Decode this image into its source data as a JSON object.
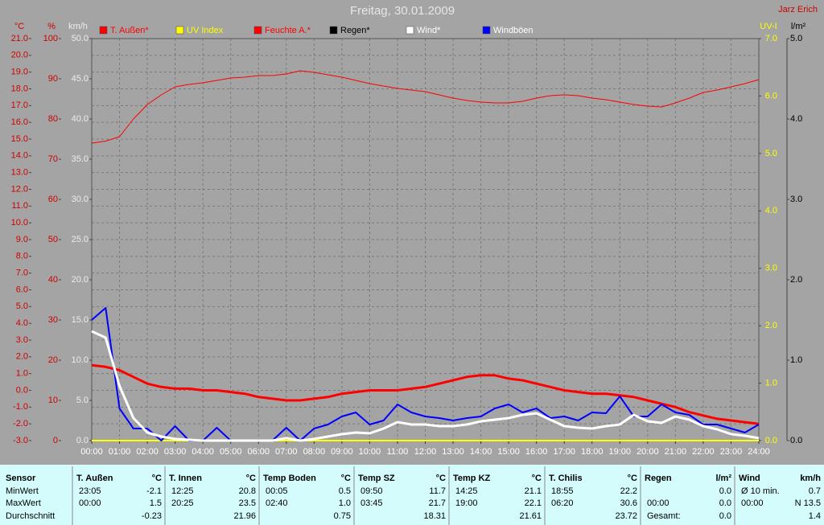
{
  "chart_data": {
    "type": "line",
    "title": "Freitag, 30.01.2009",
    "author": "Jarz Erich",
    "grid": true,
    "background": "#a4a4a4",
    "xlim": [
      0,
      24
    ],
    "xticks": [
      {
        "value": 0,
        "label": "00:00"
      },
      {
        "value": 1,
        "label": "01:00"
      },
      {
        "value": 2,
        "label": "02:00"
      },
      {
        "value": 3,
        "label": "03:00"
      },
      {
        "value": 4,
        "label": "04:00"
      },
      {
        "value": 5,
        "label": "05:00"
      },
      {
        "value": 6,
        "label": "06:00"
      },
      {
        "value": 7,
        "label": "07:00"
      },
      {
        "value": 8,
        "label": "08:00"
      },
      {
        "value": 9,
        "label": "09:00"
      },
      {
        "value": 10,
        "label": "10:00"
      },
      {
        "value": 11,
        "label": "11:00"
      },
      {
        "value": 12,
        "label": "12:00"
      },
      {
        "value": 13,
        "label": "13:00"
      },
      {
        "value": 14,
        "label": "14:00"
      },
      {
        "value": 15,
        "label": "15:00"
      },
      {
        "value": 16,
        "label": "16:00"
      },
      {
        "value": 17,
        "label": "17:00"
      },
      {
        "value": 18,
        "label": "18:00"
      },
      {
        "value": 19,
        "label": "19:00"
      },
      {
        "value": 20,
        "label": "20:00"
      },
      {
        "value": 21,
        "label": "21:00"
      },
      {
        "value": 22,
        "label": "22:00"
      },
      {
        "value": 23,
        "label": "23:00"
      },
      {
        "value": 24,
        "label": "24:00"
      }
    ],
    "axes": {
      "temp": {
        "label": "°C",
        "color": "#d00000",
        "lim": [
          -3,
          21
        ],
        "ticks": [
          {
            "value": -3,
            "label": "-3.0"
          },
          {
            "value": -2,
            "label": "-2.0"
          },
          {
            "value": -1,
            "label": "-1.0"
          },
          {
            "value": 0,
            "label": "0.0"
          },
          {
            "value": 1,
            "label": "1.0"
          },
          {
            "value": 2,
            "label": "2.0"
          },
          {
            "value": 3,
            "label": "3.0"
          },
          {
            "value": 4,
            "label": "4.0"
          },
          {
            "value": 5,
            "label": "5.0"
          },
          {
            "value": 6,
            "label": "6.0"
          },
          {
            "value": 7,
            "label": "7.0"
          },
          {
            "value": 8,
            "label": "8.0"
          },
          {
            "value": 9,
            "label": "9.0"
          },
          {
            "value": 10,
            "label": "10.0"
          },
          {
            "value": 11,
            "label": "11.0"
          },
          {
            "value": 12,
            "label": "12.0"
          },
          {
            "value": 13,
            "label": "13.0"
          },
          {
            "value": 14,
            "label": "14.0"
          },
          {
            "value": 15,
            "label": "15.0"
          },
          {
            "value": 16,
            "label": "16.0"
          },
          {
            "value": 17,
            "label": "17.0"
          },
          {
            "value": 18,
            "label": "18.0"
          },
          {
            "value": 19,
            "label": "19.0"
          },
          {
            "value": 20,
            "label": "20.0"
          },
          {
            "value": 21,
            "label": "21.0"
          }
        ]
      },
      "pct": {
        "label": "%",
        "color": "#d00000",
        "lim": [
          0,
          100
        ],
        "ticks": [
          0,
          10,
          20,
          30,
          40,
          50,
          60,
          70,
          80,
          90,
          100
        ]
      },
      "kmh": {
        "label": "km/h",
        "color": "#ececec",
        "lim": [
          0,
          50
        ],
        "ticks": [
          {
            "value": 0,
            "label": "0.0"
          },
          {
            "value": 5,
            "label": "5.0"
          },
          {
            "value": 10,
            "label": "10.0"
          },
          {
            "value": 15,
            "label": "15.0"
          },
          {
            "value": 20,
            "label": "20.0"
          },
          {
            "value": 25,
            "label": "25.0"
          },
          {
            "value": 30,
            "label": "30.0"
          },
          {
            "value": 35,
            "label": "35.0"
          },
          {
            "value": 40,
            "label": "40.0"
          },
          {
            "value": 45,
            "label": "45.0"
          },
          {
            "value": 50,
            "label": "50.0"
          }
        ]
      },
      "uv": {
        "label": "UV-I",
        "color": "#ffff00",
        "lim": [
          0,
          7
        ],
        "ticks": [
          {
            "value": 0,
            "label": "0.0"
          },
          {
            "value": 1,
            "label": "1.0"
          },
          {
            "value": 2,
            "label": "2.0"
          },
          {
            "value": 3,
            "label": "3.0"
          },
          {
            "value": 4,
            "label": "4.0"
          },
          {
            "value": 5,
            "label": "5.0"
          },
          {
            "value": 6,
            "label": "6.0"
          },
          {
            "value": 7,
            "label": "7.0"
          }
        ]
      },
      "rain": {
        "label": "l/m²",
        "color": "#000000",
        "lim": [
          0,
          5
        ],
        "ticks": [
          {
            "value": 0,
            "label": "0.0"
          },
          {
            "value": 1,
            "label": "1.0"
          },
          {
            "value": 2,
            "label": "2.0"
          },
          {
            "value": 3,
            "label": "3.0"
          },
          {
            "value": 4,
            "label": "4.0"
          },
          {
            "value": 5,
            "label": "5.0"
          }
        ]
      }
    },
    "x": [
      0,
      0.5,
      1,
      1.5,
      2,
      2.5,
      3,
      3.5,
      4,
      4.5,
      5,
      5.5,
      6,
      6.5,
      7,
      7.5,
      8,
      8.5,
      9,
      9.5,
      10,
      10.5,
      11,
      11.5,
      12,
      12.5,
      13,
      13.5,
      14,
      14.5,
      15,
      15.5,
      16,
      16.5,
      17,
      17.5,
      18,
      18.5,
      19,
      19.5,
      20,
      20.5,
      21,
      21.5,
      22,
      22.5,
      23,
      23.5,
      24
    ],
    "series": [
      {
        "name": "T. Außen*",
        "color": "#ff0000",
        "axis": "temp",
        "width": 3,
        "values": [
          1.5,
          1.4,
          1.2,
          0.8,
          0.4,
          0.2,
          0.1,
          0.1,
          0.0,
          0.0,
          -0.1,
          -0.2,
          -0.4,
          -0.5,
          -0.6,
          -0.6,
          -0.5,
          -0.4,
          -0.2,
          -0.1,
          0.0,
          0.0,
          0.0,
          0.1,
          0.2,
          0.4,
          0.6,
          0.8,
          0.9,
          0.9,
          0.7,
          0.6,
          0.4,
          0.2,
          0.0,
          -0.1,
          -0.2,
          -0.2,
          -0.3,
          -0.4,
          -0.6,
          -0.8,
          -1.0,
          -1.3,
          -1.5,
          -1.7,
          -1.8,
          -1.9,
          -2.0
        ]
      },
      {
        "name": "UV Index",
        "color": "#ffff00",
        "axis": "uv",
        "width": 2,
        "values": [
          0,
          0,
          0,
          0,
          0,
          0,
          0,
          0,
          0,
          0,
          0,
          0,
          0,
          0,
          0,
          0,
          0,
          0,
          0,
          0,
          0,
          0,
          0,
          0,
          0,
          0,
          0,
          0,
          0,
          0,
          0,
          0,
          0,
          0,
          0,
          0,
          0,
          0,
          0,
          0,
          0,
          0,
          0,
          0,
          0,
          0,
          0,
          0,
          0
        ]
      },
      {
        "name": "Feuchte A.*",
        "color": "#ff0000",
        "axis": "pct",
        "width": 1,
        "values": [
          74,
          74.5,
          75.6,
          80,
          83.6,
          86,
          88,
          88.6,
          89,
          89.6,
          90.2,
          90.4,
          90.8,
          90.8,
          91.2,
          92,
          91.6,
          91,
          90.4,
          89.6,
          88.8,
          88.2,
          87.6,
          87.2,
          86.8,
          86,
          85.2,
          84.6,
          84.2,
          84,
          84,
          84.4,
          85.2,
          85.8,
          86,
          85.8,
          85.2,
          84.8,
          84.2,
          83.6,
          83.2,
          83,
          84,
          85.2,
          86.6,
          87.2,
          88,
          88.8,
          89.8
        ]
      },
      {
        "name": "Regen*",
        "color": "#000000",
        "axis": "rain",
        "width": 1,
        "values": [
          0,
          0,
          0,
          0,
          0,
          0,
          0,
          0,
          0,
          0,
          0,
          0,
          0,
          0,
          0,
          0,
          0,
          0,
          0,
          0,
          0,
          0,
          0,
          0,
          0,
          0,
          0,
          0,
          0,
          0,
          0,
          0,
          0,
          0,
          0,
          0,
          0,
          0,
          0,
          0,
          0,
          0,
          0,
          0,
          0,
          0,
          0,
          0,
          0
        ]
      },
      {
        "name": "Wind*",
        "color": "#ffffff",
        "axis": "kmh",
        "width": 3,
        "values": [
          13.6,
          12.8,
          6.8,
          2.8,
          1.0,
          0.5,
          0.2,
          0.1,
          0,
          0,
          0,
          0,
          0,
          0,
          0.3,
          0,
          0.2,
          0.5,
          0.8,
          1.0,
          0.9,
          1.5,
          2.3,
          2.0,
          2.0,
          1.8,
          1.8,
          2.0,
          2.4,
          2.6,
          2.8,
          3.2,
          3.4,
          2.6,
          1.8,
          1.6,
          1.5,
          1.8,
          2.0,
          3.2,
          2.4,
          2.2,
          3.0,
          2.6,
          1.8,
          1.4,
          0.8,
          0.6,
          0.3
        ]
      },
      {
        "name": "Windböen",
        "color": "#0000ff",
        "text_color": "#ffffff",
        "axis": "kmh",
        "width": 2,
        "values": [
          15,
          16.5,
          4,
          1.5,
          1.5,
          0,
          1.8,
          0,
          0,
          1.6,
          0,
          0,
          0,
          0,
          1.6,
          0,
          1.5,
          2,
          3,
          3.5,
          2,
          2.5,
          4.5,
          3.5,
          3,
          2.8,
          2.5,
          2.8,
          3,
          4,
          4.5,
          3.5,
          4,
          2.8,
          3,
          2.5,
          3.5,
          3.4,
          5.5,
          3,
          3,
          4.5,
          3.5,
          3.2,
          2,
          2,
          1.5,
          1,
          2
        ]
      }
    ]
  },
  "table": {
    "row_labels": [
      "Sensor",
      "MinWert",
      "MaxWert",
      "Durchschnitt"
    ],
    "columns": [
      {
        "name": "T. Außen",
        "unit": "°C",
        "rows": [
          [
            "23:05",
            "-2.1"
          ],
          [
            "00:00",
            "1.5"
          ],
          [
            null,
            "-0.23"
          ]
        ]
      },
      {
        "name": "T. Innen",
        "unit": "°C",
        "rows": [
          [
            "12:25",
            "20.8"
          ],
          [
            "20:25",
            "23.5"
          ],
          [
            null,
            "21.96"
          ]
        ]
      },
      {
        "name": "Temp Boden",
        "unit": "°C",
        "rows": [
          [
            "00:05",
            "0.5"
          ],
          [
            "02:40",
            "1.0"
          ],
          [
            null,
            "0.75"
          ]
        ]
      },
      {
        "name": "Temp SZ",
        "unit": "°C",
        "rows": [
          [
            "09:50",
            "11.7"
          ],
          [
            "03:45",
            "21.7"
          ],
          [
            null,
            "18.31"
          ]
        ]
      },
      {
        "name": "Temp KZ",
        "unit": "°C",
        "rows": [
          [
            "14:25",
            "21.1"
          ],
          [
            "19:00",
            "22.1"
          ],
          [
            null,
            "21.61"
          ]
        ]
      },
      {
        "name": "T. Chilis",
        "unit": "°C",
        "rows": [
          [
            "18:55",
            "22.2"
          ],
          [
            "06:20",
            "30.6"
          ],
          [
            null,
            "23.72"
          ]
        ]
      },
      {
        "name": "Regen",
        "unit": "l/m²",
        "rows": [
          [
            null,
            "0.0"
          ],
          [
            "00:00",
            "0.0"
          ],
          [
            "Gesamt:",
            "0.0"
          ]
        ]
      },
      {
        "name": "Wind",
        "unit": "km/h",
        "rows": [
          [
            "Ø 10 min.",
            "0.7"
          ],
          [
            "00:00",
            "N 13.5"
          ],
          [
            null,
            "1.4"
          ]
        ]
      }
    ]
  }
}
